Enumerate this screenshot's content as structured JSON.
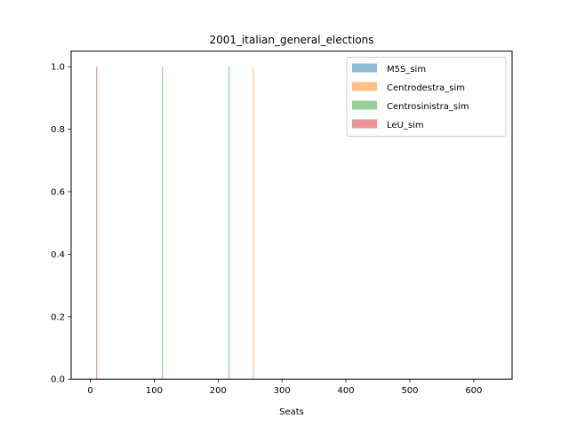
{
  "chart_data": {
    "type": "bar",
    "title": "2001_italian_general_elections",
    "xlabel": "Seats",
    "ylabel": "",
    "xlim": [
      -30,
      660
    ],
    "ylim": [
      0,
      1.05
    ],
    "xticks": [
      0,
      100,
      200,
      300,
      400,
      500,
      600
    ],
    "yticks": [
      0.0,
      0.2,
      0.4,
      0.6,
      0.8,
      1.0
    ],
    "ytick_labels": [
      "0.0",
      "0.2",
      "0.4",
      "0.6",
      "0.8",
      "1.0"
    ],
    "grid": false,
    "legend_position": "top-right",
    "series": [
      {
        "name": "M5S_sim",
        "x": 217,
        "value": 1.0,
        "color": "#1f77b4"
      },
      {
        "name": "Centrodestra_sim",
        "x": 255,
        "value": 1.0,
        "color": "#ff7f0e"
      },
      {
        "name": "Centrosinistra_sim",
        "x": 113,
        "value": 1.0,
        "color": "#2ca02c"
      },
      {
        "name": "LeU_sim",
        "x": 10,
        "value": 1.0,
        "color": "#d62728"
      }
    ]
  }
}
